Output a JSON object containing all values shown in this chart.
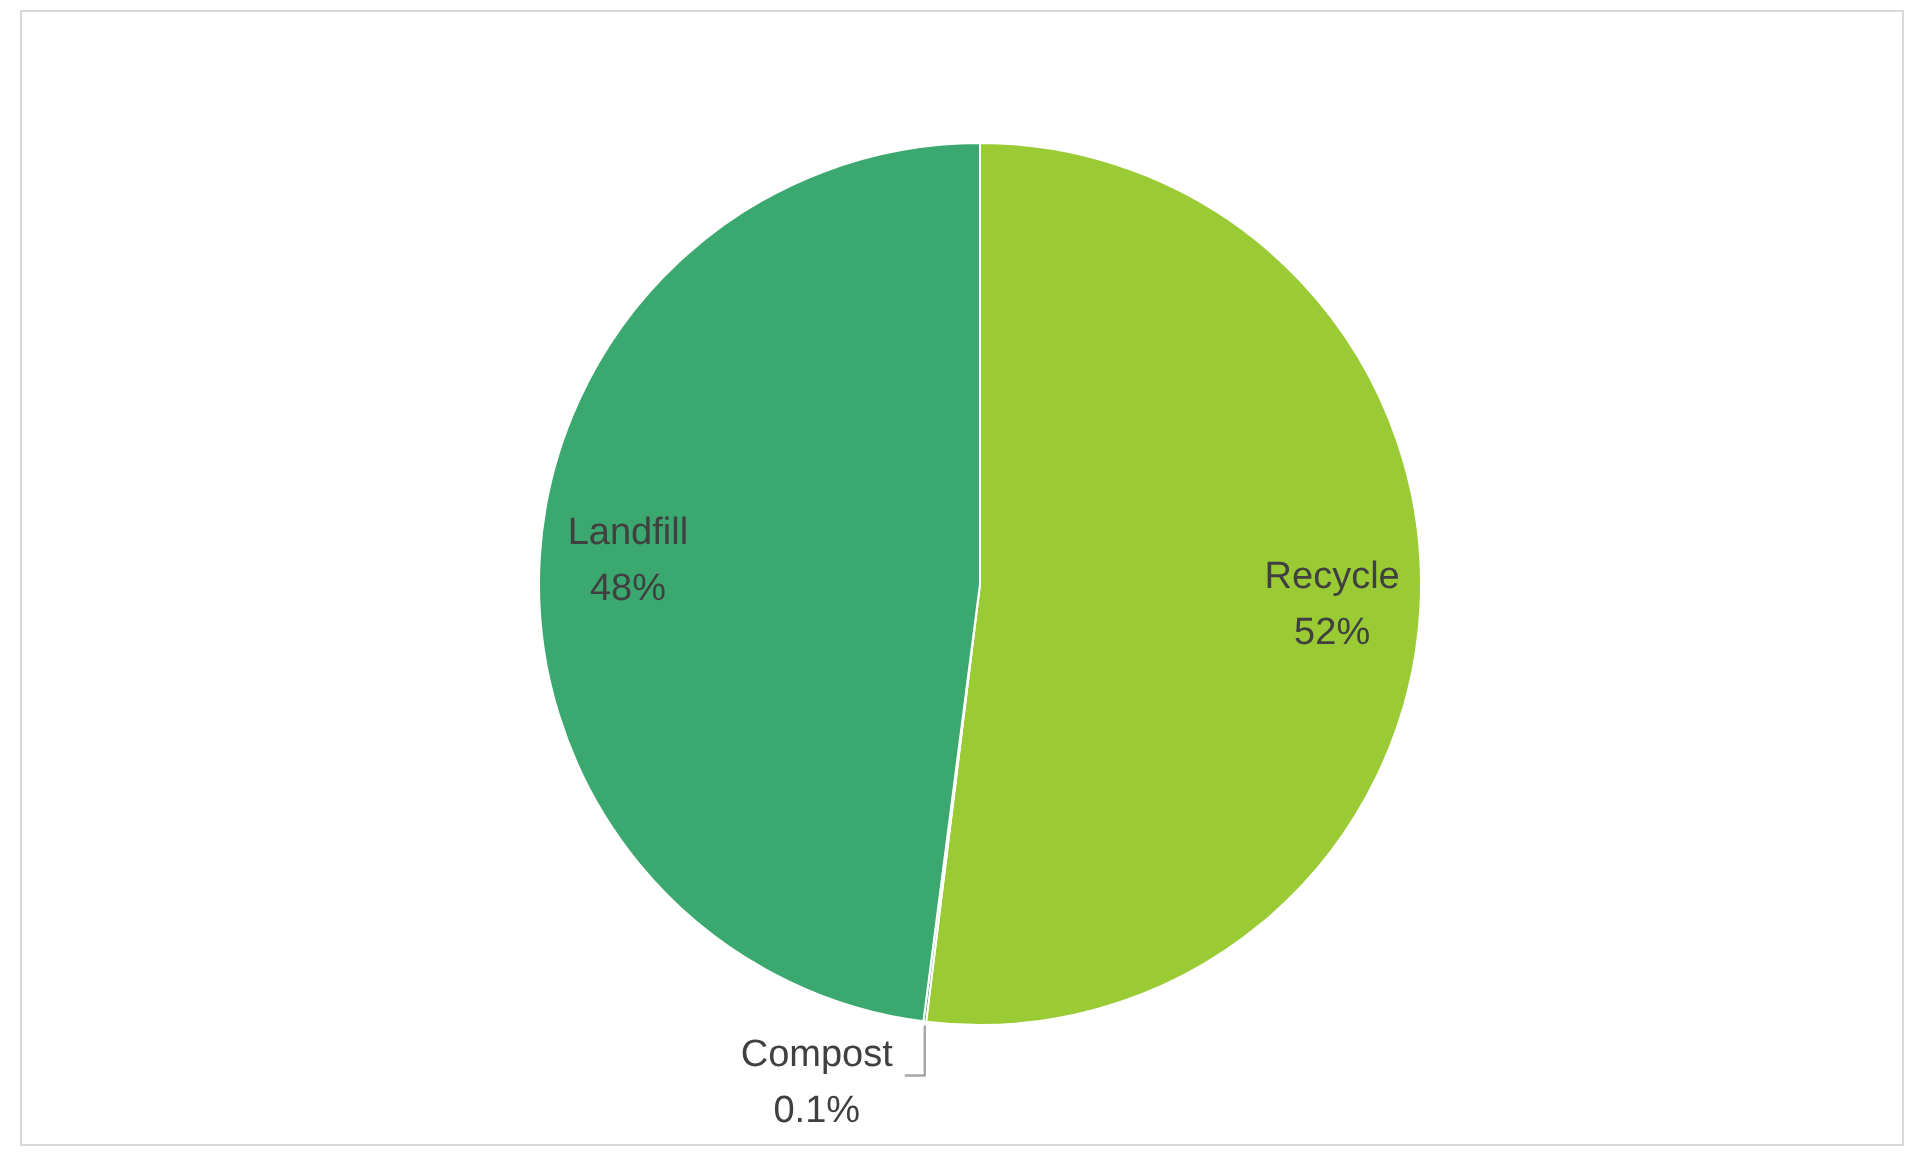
{
  "chart_data": {
    "type": "pie",
    "categories": [
      "Recycle",
      "Compost",
      "Landfill"
    ],
    "values": [
      52,
      0.1,
      48
    ],
    "colors": [
      "#9acb34",
      "#2f8a57",
      "#3ba870"
    ],
    "value_labels": [
      "52%",
      "0.1%",
      "48%"
    ]
  }
}
